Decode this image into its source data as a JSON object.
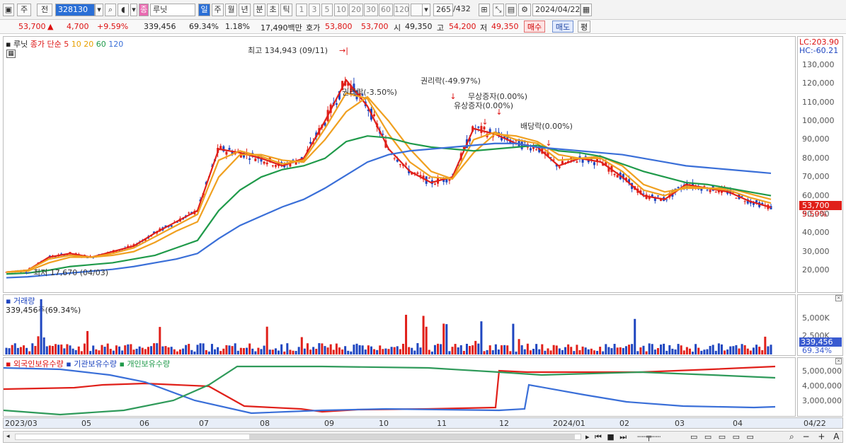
{
  "toolbar": {
    "mode_a": "주",
    "mode_b": "전",
    "code": "328130",
    "name": "루닛",
    "periods": [
      "일",
      "주",
      "월",
      "년",
      "분",
      "초",
      "틱"
    ],
    "minutes": [
      "1",
      "3",
      "5",
      "10",
      "20",
      "30",
      "60",
      "120"
    ],
    "count_shown": "265",
    "count_total": "/432",
    "date": "2024/04/22"
  },
  "quote": {
    "price": "53,700",
    "arrow": "▲",
    "change": "4,700",
    "change_pct": "+9.59%",
    "volume": "339,456",
    "vol_ratio": "69.34%",
    "turnover_pct": "1.18%",
    "amount": "17,490백만",
    "bid_label": "호가",
    "bid1": "53,800",
    "bid2": "53,700",
    "open_label": "시",
    "open": "49,350",
    "high_label": "고",
    "high": "54,200",
    "low_label": "저",
    "low": "49,350",
    "buy_btn": "매수",
    "sell_btn": "매도",
    "eval_btn": "평"
  },
  "legend": {
    "name": "루닛",
    "ma_label": "종가 단순",
    "ma": [
      {
        "period": "5",
        "color": "#e0201a"
      },
      {
        "period": "10",
        "color": "#f0a020"
      },
      {
        "period": "20",
        "color": "#f0a020"
      },
      {
        "period": "60",
        "color": "#1f9a4a"
      },
      {
        "period": "120",
        "color": "#3a6fd8"
      }
    ]
  },
  "axis_top": {
    "lc": "LC:203.90",
    "hc": "HC:-60.21"
  },
  "annotations": {
    "high": "최고 134,943 (09/11)",
    "low": "최저 17,670 (04/03)",
    "rights1": "권리락(-3.50%)",
    "rights2": "권리락(-49.97%)",
    "bonus": "무상증자(0.00%)",
    "paid": "유상증자(0.00%)",
    "dividend": "배당락(0.00%)"
  },
  "price_axis": [
    "130,000",
    "120,000",
    "110,000",
    "100,000",
    "90,000",
    "80,000",
    "70,000",
    "60,000",
    "50,000",
    "40,000",
    "30,000",
    "20,000"
  ],
  "price_tag": {
    "value": "53,700",
    "pct": "9.59%"
  },
  "volume_panel": {
    "title": "거래량",
    "value": "339,456주(69.34%)",
    "axis": [
      "5,000K",
      "2,500K"
    ],
    "tag": "339,456",
    "tag_pct": "69.34%"
  },
  "holdings": {
    "foreign": "외국인보유수량",
    "inst": "기관보유수량",
    "indiv": "개인보유수량",
    "axis": [
      "5,000,000",
      "4,000,000",
      "3,000,000"
    ]
  },
  "x_axis": [
    "2023/03",
    "05",
    "06",
    "07",
    "08",
    "09",
    "10",
    "11",
    "12",
    "2024/01",
    "02",
    "03",
    "04",
    "04/22"
  ],
  "chart_data": {
    "type": "line",
    "title": "",
    "xlabel": "",
    "ylabel": "",
    "ylim": [
      10000,
      140000
    ],
    "series": [
      {
        "name": "MA5",
        "color": "#e0201a",
        "values": [
          19000,
          20000,
          27000,
          29000,
          27000,
          30000,
          33000,
          40000,
          46000,
          52000,
          85000,
          83000,
          80000,
          76000,
          80000,
          100000,
          122000,
          108000,
          85000,
          73000,
          67000,
          70000,
          96000,
          93000,
          88000,
          86000,
          76000,
          80000,
          78000,
          70000,
          60000,
          58000,
          66000,
          64000,
          62000,
          57000,
          53700
        ]
      },
      {
        "name": "MA10",
        "color": "#f0a020",
        "values": [
          19000,
          20000,
          26000,
          28000,
          27000,
          29000,
          32000,
          38000,
          44000,
          50000,
          79000,
          84000,
          81000,
          77000,
          79000,
          96000,
          115000,
          112000,
          93000,
          78000,
          70000,
          69000,
          90000,
          94000,
          90000,
          88000,
          79000,
          80000,
          80000,
          73000,
          63000,
          60000,
          65000,
          64000,
          63000,
          59000,
          56000
        ]
      },
      {
        "name": "MA20",
        "color": "#f0a020",
        "values": [
          19000,
          19500,
          24000,
          27000,
          27000,
          28000,
          30000,
          35000,
          41000,
          46000,
          70000,
          82000,
          82000,
          79000,
          78000,
          90000,
          105000,
          113000,
          100000,
          85000,
          73000,
          69000,
          83000,
          93000,
          92000,
          89000,
          82000,
          80000,
          81000,
          76000,
          66000,
          62000,
          64000,
          64000,
          64000,
          61000,
          58000
        ]
      },
      {
        "name": "MA60",
        "color": "#1f9a4a",
        "values": [
          18000,
          18500,
          20000,
          22000,
          23000,
          24000,
          26000,
          28000,
          32000,
          36000,
          52000,
          63000,
          70000,
          74000,
          76000,
          80000,
          89000,
          92000,
          91000,
          88000,
          86000,
          85000,
          84000,
          85000,
          86000,
          87000,
          84000,
          83000,
          81000,
          77000,
          73000,
          70000,
          67000,
          66000,
          64000,
          62000,
          60000
        ]
      },
      {
        "name": "MA120",
        "color": "#3a6fd8",
        "values": [
          16000,
          16500,
          17500,
          18500,
          19500,
          20500,
          22000,
          24000,
          26000,
          29000,
          37000,
          44000,
          49000,
          54000,
          58000,
          64000,
          71000,
          78000,
          82000,
          84000,
          85000,
          86000,
          87000,
          88000,
          88000,
          86000,
          85000,
          84000,
          83000,
          82000,
          80000,
          78000,
          76000,
          75000,
          74000,
          73000,
          72000
        ]
      }
    ]
  }
}
